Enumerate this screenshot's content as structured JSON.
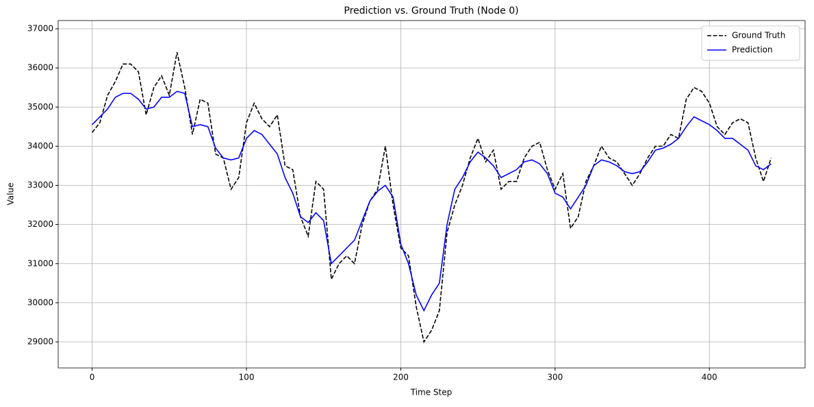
{
  "chart_data": {
    "type": "line",
    "title": "Prediction vs. Ground Truth (Node 0)",
    "x_label": "Time Step",
    "y_label": "Value",
    "x": [
      0,
      5,
      10,
      15,
      20,
      25,
      30,
      35,
      40,
      45,
      50,
      55,
      60,
      65,
      70,
      75,
      80,
      85,
      90,
      95,
      100,
      105,
      110,
      115,
      120,
      125,
      130,
      135,
      140,
      145,
      150,
      155,
      160,
      165,
      170,
      175,
      180,
      185,
      190,
      195,
      200,
      205,
      210,
      215,
      220,
      225,
      230,
      235,
      240,
      245,
      250,
      255,
      260,
      265,
      270,
      275,
      280,
      285,
      290,
      295,
      300,
      305,
      310,
      315,
      320,
      325,
      330,
      335,
      340,
      345,
      350,
      355,
      360,
      365,
      370,
      375,
      380,
      385,
      390,
      395,
      400,
      405,
      410,
      415,
      420,
      425,
      430,
      435,
      440
    ],
    "series": [
      {
        "name": "Ground Truth",
        "color": "#000000",
        "style": "dashed",
        "values": [
          34350,
          34600,
          35300,
          35650,
          36100,
          36100,
          35900,
          34800,
          35500,
          35800,
          35300,
          36400,
          35500,
          34300,
          35200,
          35100,
          33800,
          33700,
          32900,
          33200,
          34600,
          35100,
          34700,
          34500,
          34800,
          33500,
          33400,
          32200,
          31700,
          33100,
          32900,
          30600,
          31000,
          31200,
          31000,
          32000,
          32600,
          32900,
          34000,
          32500,
          31400,
          31200,
          29900,
          29000,
          29300,
          29800,
          31800,
          32500,
          33000,
          33700,
          34200,
          33600,
          33900,
          32900,
          33100,
          33100,
          33700,
          34000,
          34100,
          33400,
          32900,
          33300,
          31900,
          32200,
          33100,
          33500,
          34000,
          33700,
          33600,
          33300,
          33000,
          33300,
          33700,
          34000,
          34000,
          34300,
          34200,
          35200,
          35500,
          35400,
          35100,
          34500,
          34300,
          34600,
          34700,
          34600,
          33700,
          33100,
          33700
        ]
      },
      {
        "name": "Prediction",
        "color": "#0000ff",
        "style": "solid",
        "values": [
          34550,
          34750,
          34950,
          35250,
          35350,
          35350,
          35200,
          34950,
          35000,
          35250,
          35250,
          35400,
          35350,
          34500,
          34550,
          34500,
          33950,
          33700,
          33650,
          33700,
          34200,
          34400,
          34300,
          34050,
          33800,
          33200,
          32800,
          32200,
          32050,
          32300,
          32100,
          31000,
          31200,
          31400,
          31600,
          32100,
          32600,
          32850,
          33000,
          32700,
          31500,
          31000,
          30200,
          29800,
          30200,
          30500,
          32000,
          32900,
          33200,
          33600,
          33850,
          33700,
          33500,
          33200,
          33300,
          33400,
          33600,
          33650,
          33550,
          33300,
          32800,
          32700,
          32400,
          32700,
          33000,
          33500,
          33650,
          33600,
          33500,
          33350,
          33300,
          33350,
          33600,
          33900,
          33950,
          34050,
          34200,
          34500,
          34750,
          34650,
          34550,
          34400,
          34200,
          34200,
          34050,
          33900,
          33500,
          33400,
          33550
        ]
      }
    ],
    "xlim": [
      -22,
      462
    ],
    "ylim": [
      28335,
      37210
    ],
    "xticks": [
      0,
      100,
      200,
      300,
      400
    ],
    "yticks": [
      29000,
      30000,
      31000,
      32000,
      33000,
      34000,
      35000,
      36000,
      37000
    ],
    "grid": true,
    "legend": "upper-right"
  }
}
